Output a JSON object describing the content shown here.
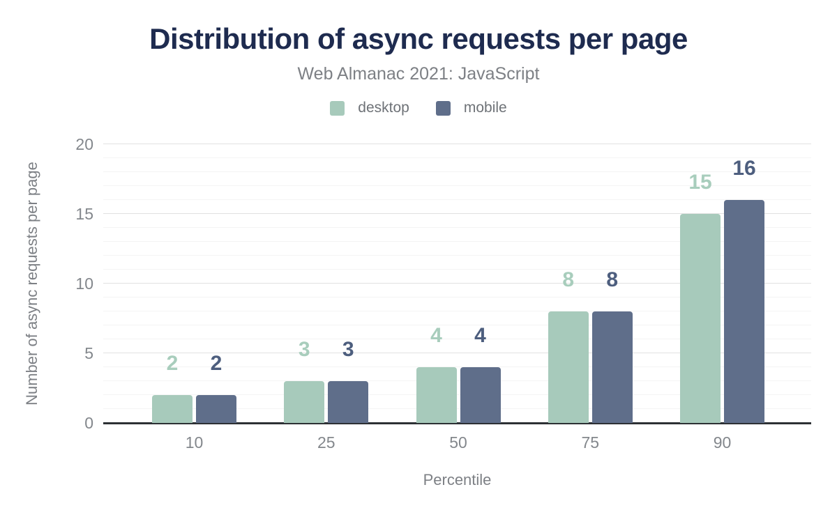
{
  "chart_data": {
    "type": "bar",
    "title": "Distribution of async requests per page",
    "subtitle": "Web Almanac 2021: JavaScript",
    "xlabel": "Percentile",
    "ylabel": "Number of async requests per page",
    "categories": [
      "10",
      "25",
      "50",
      "75",
      "90"
    ],
    "series": [
      {
        "name": "desktop",
        "color": "#a7cabb",
        "label_color": "#a8cdbc",
        "values": [
          2,
          3,
          4,
          8,
          15
        ]
      },
      {
        "name": "mobile",
        "color": "#5f6e8a",
        "label_color": "#4d5e7e",
        "values": [
          2,
          3,
          4,
          8,
          16
        ]
      }
    ],
    "ylim": [
      0,
      20
    ],
    "yticks": [
      0,
      5,
      10,
      15,
      20
    ],
    "grid": {
      "minor_step": 1,
      "major_step": 5,
      "minor_color": "#f4f4f4",
      "major_color": "#e1e1e1"
    },
    "legend_position": "top",
    "axis_line_color": "#2d3034",
    "title_color": "#1e2b4f",
    "text_color": "#7d8085"
  }
}
